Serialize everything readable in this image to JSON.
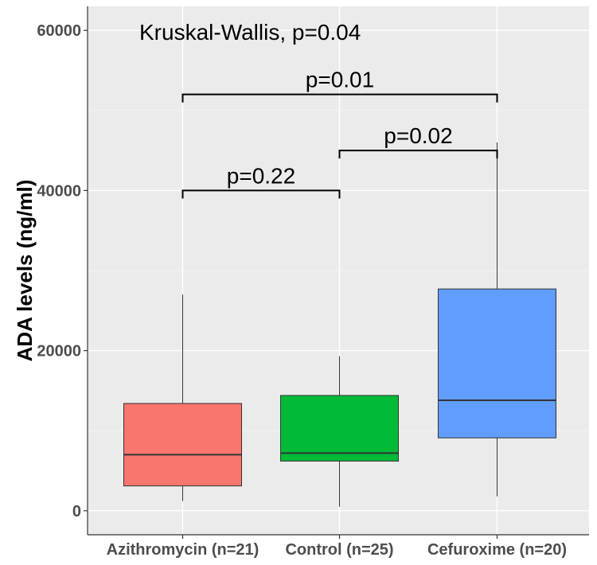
{
  "chart_data": {
    "type": "boxplot",
    "title": "",
    "xlabel": "",
    "ylabel": "ADA levels (ng/ml)",
    "ylim": [
      -3000,
      63000
    ],
    "yticks": [
      0,
      20000,
      40000,
      60000
    ],
    "ytick_labels": [
      "0",
      "20000",
      "40000",
      "60000"
    ],
    "categories": [
      "Azithromycin (n=21)",
      "Control (n=25)",
      "Cefuroxime (n=20)"
    ],
    "boxes": [
      {
        "name": "Azithromycin (n=21)",
        "min": 1200,
        "q1": 3100,
        "median": 7000,
        "q3": 13400,
        "max": 27000,
        "color": "#f8766d"
      },
      {
        "name": "Control (n=25)",
        "min": 500,
        "q1": 6200,
        "median": 7200,
        "q3": 14400,
        "max": 19300,
        "color": "#00ba38"
      },
      {
        "name": "Cefuroxime (n=20)",
        "min": 1800,
        "q1": 9100,
        "median": 13800,
        "q3": 27700,
        "max": 46000,
        "color": "#619cff"
      }
    ],
    "annotations": {
      "global_test": "Kruskal-Wallis, p=0.04",
      "comparisons": [
        {
          "from": 0,
          "to": 1,
          "y": 40000,
          "label": "p=0.22"
        },
        {
          "from": 1,
          "to": 2,
          "y": 45000,
          "label": "p=0.02"
        },
        {
          "from": 0,
          "to": 2,
          "y": 52000,
          "label": "p=0.01"
        }
      ]
    },
    "grid": true,
    "legend": "none",
    "panel_background": "#ebebeb"
  }
}
